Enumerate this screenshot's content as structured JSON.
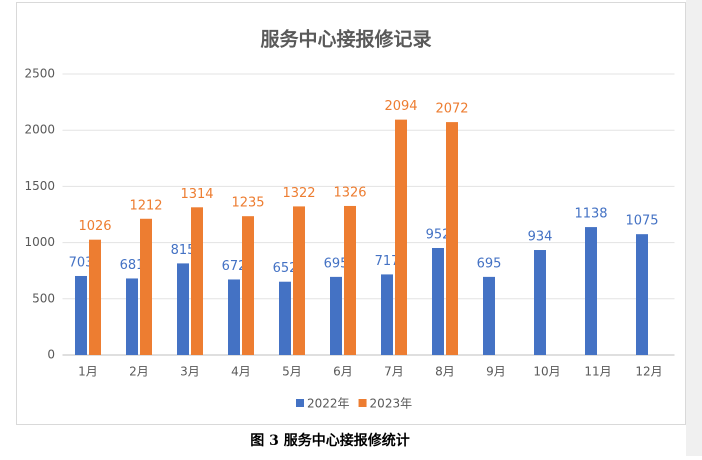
{
  "chart_data": {
    "type": "bar",
    "title": "服务中心接报修记录",
    "categories": [
      "1月",
      "2月",
      "3月",
      "4月",
      "5月",
      "6月",
      "7月",
      "8月",
      "9月",
      "10月",
      "11月",
      "12月"
    ],
    "series": [
      {
        "name": "2022年",
        "color": "#4472c4",
        "values": [
          703,
          681,
          815,
          672,
          652,
          695,
          717,
          952,
          695,
          934,
          1138,
          1075
        ]
      },
      {
        "name": "2023年",
        "color": "#ed7d31",
        "values": [
          1026,
          1212,
          1314,
          1235,
          1322,
          1326,
          2094,
          2072,
          null,
          null,
          null,
          null
        ]
      }
    ],
    "ylim": [
      0,
      2500
    ],
    "yticks": [
      0,
      500,
      1000,
      1500,
      2000,
      2500
    ],
    "grid": true,
    "legend": "bottom"
  },
  "caption": "图 3 服务中心接报修统计"
}
